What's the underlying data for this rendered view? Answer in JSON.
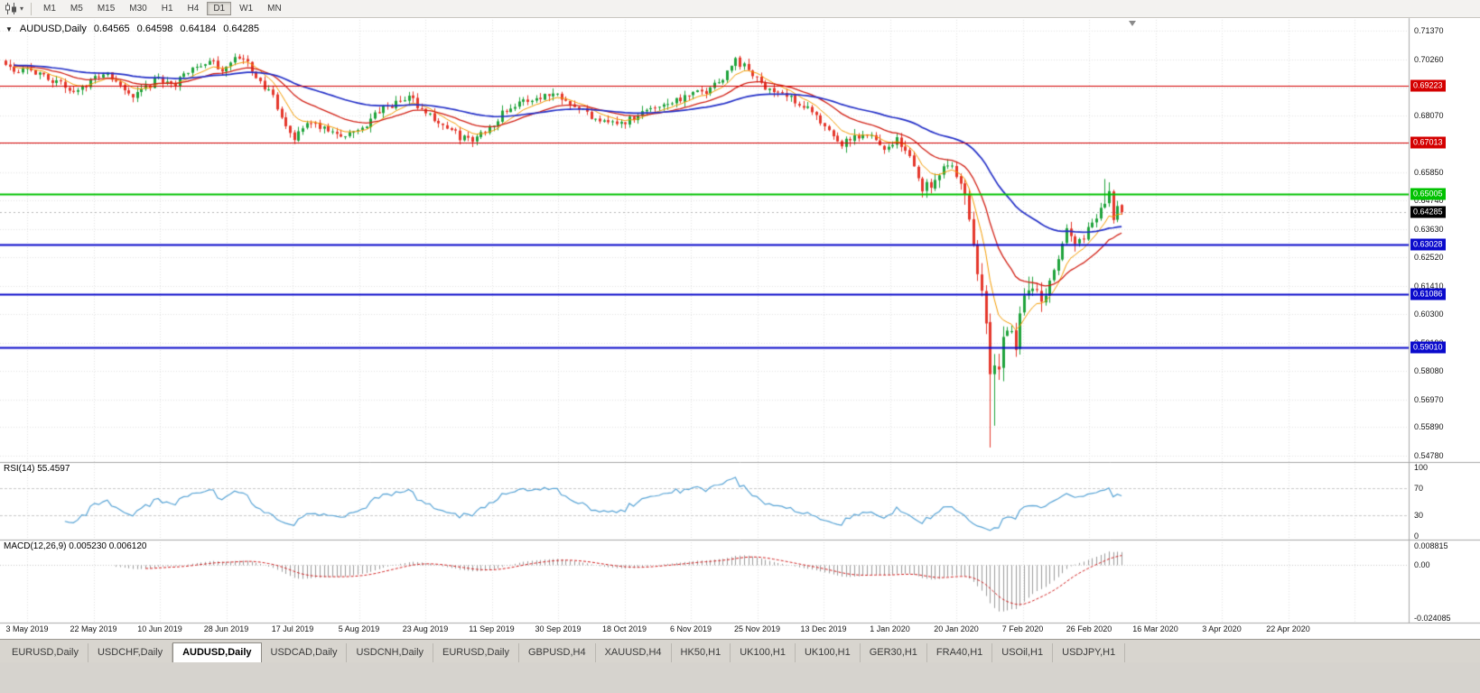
{
  "toolbar": {
    "timeframes": [
      "M1",
      "M5",
      "M15",
      "M30",
      "H1",
      "H4",
      "D1",
      "W1",
      "MN"
    ],
    "active_timeframe": "D1"
  },
  "chart_header": {
    "symbol": "AUDUSD,Daily",
    "open": "0.64565",
    "high": "0.64598",
    "low": "0.64184",
    "close": "0.64285"
  },
  "price_axis": {
    "ticks": [
      "0.71370",
      "0.70260",
      "0.69150",
      "0.68070",
      "0.66960",
      "0.65850",
      "0.64740",
      "0.63630",
      "0.62520",
      "0.61410",
      "0.60300",
      "0.59190",
      "0.58080",
      "0.56970",
      "0.55890",
      "0.54780"
    ]
  },
  "hlines": [
    {
      "price": 0.69223,
      "label": "0.69223",
      "color": "#D40000",
      "width": 1
    },
    {
      "price": 0.67013,
      "label": "0.67013",
      "color": "#D40000",
      "width": 1
    },
    {
      "price": 0.65005,
      "label": "0.65005",
      "color": "#00C200",
      "width": 2
    },
    {
      "price": 0.63028,
      "label": "0.63028",
      "color": "#0A0ACC",
      "width": 2
    },
    {
      "price": 0.61086,
      "label": "0.61086",
      "color": "#0A0ACC",
      "width": 2
    },
    {
      "price": 0.5901,
      "label": "0.59010",
      "color": "#0A0ACC",
      "width": 2
    }
  ],
  "current_price": {
    "label": "0.64285"
  },
  "rsi": {
    "label": "RSI(14) 55.4597",
    "period": 14,
    "levels": [
      70,
      30
    ],
    "ticks": [
      {
        "label": "100",
        "value": 100
      },
      {
        "label": "70",
        "value": 70
      },
      {
        "label": "30",
        "value": 30
      },
      {
        "label": "0",
        "value": 0
      }
    ]
  },
  "macd": {
    "label": "MACD(12,26,9) 0.005230 0.006120",
    "fast": 12,
    "slow": 26,
    "signal": 9,
    "axis": {
      "max": 0.008815,
      "min": -0.024085
    },
    "ticks": [
      {
        "label": "0.008815",
        "value": 0.008815
      },
      {
        "label": "0.00",
        "value": 0
      },
      {
        "label": "-0.024085",
        "value": -0.024085
      }
    ]
  },
  "date_axis": {
    "labels": [
      "3 May 2019",
      "22 May 2019",
      "10 Jun 2019",
      "28 Jun 2019",
      "17 Jul 2019",
      "5 Aug 2019",
      "23 Aug 2019",
      "11 Sep 2019",
      "30 Sep 2019",
      "18 Oct 2019",
      "6 Nov 2019",
      "25 Nov 2019",
      "13 Dec 2019",
      "1 Jan 2020",
      "20 Jan 2020",
      "7 Feb 2020",
      "26 Feb 2020",
      "16 Mar 2020",
      "3 Apr 2020",
      "22 Apr 2020"
    ]
  },
  "tabs": {
    "items": [
      "EURUSD,Daily",
      "USDCHF,Daily",
      "AUDUSD,Daily",
      "USDCAD,Daily",
      "USDCNH,Daily",
      "EURUSD,Daily",
      "GBPUSD,H4",
      "XAUUSD,H4",
      "HK50,H1",
      "UK100,H1",
      "UK100,H1",
      "GER30,H1",
      "FRA40,H1",
      "USOil,H1",
      "USDJPY,H1"
    ],
    "active_index": 2
  },
  "colors": {
    "up": "#1FA33B",
    "down": "#E5372B",
    "grid": "#E4E4E4",
    "panel_border": "#A8A8A8",
    "current_price_line": "#B4B4B4",
    "rsi_line": "#58A4D6",
    "rsi_levels": "#C9C9C9",
    "macd_hist": "#9C9C9C",
    "macd_signal": "#D21F1F",
    "current_price_tag": "#000000"
  },
  "chart_data": {
    "type": "candlestick",
    "symbol": "AUDUSD",
    "timeframe": "Daily",
    "title": "AUDUSD,Daily",
    "ylim": [
      0.5478,
      0.7137
    ],
    "days": 264,
    "seed": 1337,
    "last_candle": {
      "open": 0.64565,
      "high": 0.64598,
      "low": 0.64184,
      "close": 0.64285
    },
    "price_anchors": [
      [
        0,
        0.7018
      ],
      [
        2,
        0.6985
      ],
      [
        5,
        0.7
      ],
      [
        8,
        0.6962
      ],
      [
        12,
        0.694
      ],
      [
        15,
        0.6902
      ],
      [
        19,
        0.6928
      ],
      [
        23,
        0.6972
      ],
      [
        26,
        0.6938
      ],
      [
        30,
        0.6872
      ],
      [
        33,
        0.691
      ],
      [
        36,
        0.6952
      ],
      [
        40,
        0.6925
      ],
      [
        44,
        0.6998
      ],
      [
        48,
        0.7012
      ],
      [
        51,
        0.6988
      ],
      [
        54,
        0.7032
      ],
      [
        57,
        0.7008
      ],
      [
        60,
        0.6938
      ],
      [
        63,
        0.6872
      ],
      [
        65,
        0.6788
      ],
      [
        68,
        0.6718
      ],
      [
        71,
        0.6782
      ],
      [
        74,
        0.6758
      ],
      [
        78,
        0.6732
      ],
      [
        81,
        0.6728
      ],
      [
        85,
        0.6772
      ],
      [
        88,
        0.6822
      ],
      [
        92,
        0.6852
      ],
      [
        95,
        0.6878
      ],
      [
        99,
        0.6818
      ],
      [
        103,
        0.6768
      ],
      [
        107,
        0.6722
      ],
      [
        110,
        0.6708
      ],
      [
        114,
        0.6762
      ],
      [
        118,
        0.6832
      ],
      [
        122,
        0.6858
      ],
      [
        126,
        0.6882
      ],
      [
        130,
        0.6892
      ],
      [
        134,
        0.6852
      ],
      [
        138,
        0.6802
      ],
      [
        142,
        0.6788
      ],
      [
        145,
        0.6772
      ],
      [
        149,
        0.6812
      ],
      [
        153,
        0.6842
      ],
      [
        157,
        0.6862
      ],
      [
        161,
        0.6882
      ],
      [
        165,
        0.6902
      ],
      [
        169,
        0.6958
      ],
      [
        172,
        0.7022
      ],
      [
        175,
        0.6982
      ],
      [
        178,
        0.6928
      ],
      [
        182,
        0.6898
      ],
      [
        185,
        0.6872
      ],
      [
        189,
        0.6838
      ],
      [
        192,
        0.6772
      ],
      [
        196,
        0.6692
      ],
      [
        200,
        0.6712
      ],
      [
        204,
        0.6728
      ],
      [
        207,
        0.6682
      ],
      [
        210,
        0.6712
      ],
      [
        213,
        0.6638
      ],
      [
        216,
        0.6528
      ],
      [
        219,
        0.6548
      ],
      [
        221,
        0.6628
      ],
      [
        224,
        0.6578
      ],
      [
        226,
        0.6478
      ],
      [
        228,
        0.6288
      ],
      [
        230,
        0.6152
      ],
      [
        231,
        0.5988
      ],
      [
        232,
        0.5762
      ],
      [
        233,
        0.5868
      ],
      [
        234,
        0.5798
      ],
      [
        235,
        0.5928
      ],
      [
        236,
        0.5968
      ],
      [
        238,
        0.5898
      ],
      [
        240,
        0.6128
      ],
      [
        242,
        0.6168
      ],
      [
        244,
        0.6042
      ],
      [
        246,
        0.6178
      ],
      [
        248,
        0.6228
      ],
      [
        250,
        0.6358
      ],
      [
        252,
        0.6308
      ],
      [
        254,
        0.6338
      ],
      [
        256,
        0.6378
      ],
      [
        258,
        0.6438
      ],
      [
        260,
        0.6508
      ],
      [
        261,
        0.6412
      ],
      [
        262,
        0.6452
      ],
      [
        263,
        0.64285
      ]
    ],
    "special_lows": {
      "232": 0.551,
      "233": 0.5595
    },
    "special_highs": {
      "54": 0.7044,
      "172": 0.7032,
      "259": 0.6558,
      "260": 0.6545
    },
    "volatility": [
      {
        "from": 0,
        "to": 191,
        "amp": 0.0042
      },
      {
        "from": 192,
        "to": 215,
        "amp": 0.005
      },
      {
        "from": 216,
        "to": 225,
        "amp": 0.0065
      },
      {
        "from": 226,
        "to": 244,
        "amp": 0.011
      },
      {
        "from": 245,
        "to": 252,
        "amp": 0.006
      },
      {
        "from": 253,
        "to": 263,
        "amp": 0.0045
      }
    ],
    "moving_averages": [
      {
        "period": 8,
        "color": "#F59B00",
        "width": 1
      },
      {
        "period": 21,
        "color": "#D22015",
        "width": 1.3
      },
      {
        "period": 55,
        "color": "#2430C8",
        "width": 1.7
      }
    ]
  }
}
